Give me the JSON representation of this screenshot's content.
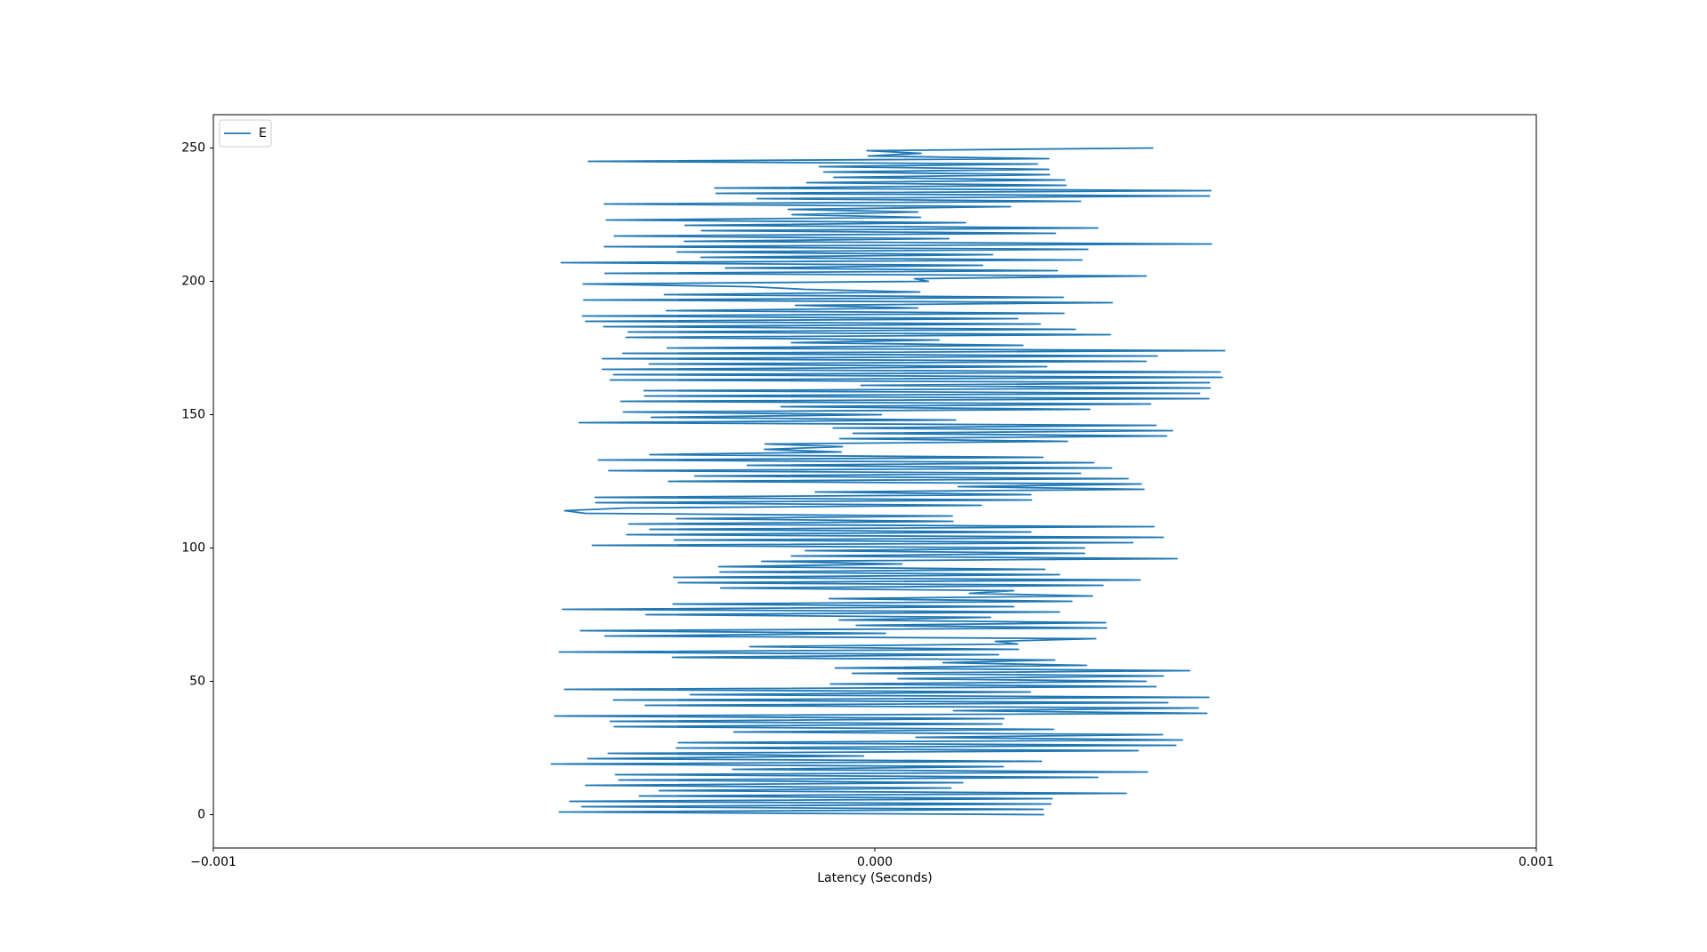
{
  "chart_data": {
    "type": "line",
    "xlabel": "Latency (Seconds)",
    "xlim": [
      -0.001,
      0.001
    ],
    "xticks": [
      {
        "value": -0.001,
        "label": "−0.001"
      },
      {
        "value": 0,
        "label": "0.000"
      },
      {
        "value": 0.001,
        "label": "0.001"
      }
    ],
    "ylim": [
      -12.5,
      262.5
    ],
    "yticks": [
      0,
      50,
      100,
      150,
      200,
      250
    ],
    "grid": false,
    "legend": "upper left",
    "series": [
      {
        "name": "E",
        "color": "#1f77b4",
        "x": [
          0.000256,
          -0.000477,
          0.000254,
          -0.000443,
          0.000266,
          -0.000461,
          0.000268,
          -0.000356,
          0.00038,
          -0.000326,
          0.000115,
          -0.000437,
          0.000133,
          -0.000387,
          0.000337,
          -0.000392,
          0.000412,
          -0.000215,
          0.000194,
          -0.000489,
          0.000252,
          -0.000434,
          -1.7e-05,
          -0.000403,
          0.000398,
          -0.0003,
          0.000455,
          -0.000297,
          0.000465,
          6.2e-05,
          0.000435,
          -0.000213,
          0.00027,
          -0.000394,
          0.000192,
          -0.0004,
          0.000195,
          -0.000484,
          0.000502,
          0.000119,
          0.000489,
          -0.000347,
          0.000443,
          -0.000395,
          0.000505,
          -0.000279,
          0.000235,
          -0.000469,
          0.000425,
          -6.7e-05,
          0.00041,
          3.5e-05,
          0.000436,
          -3.4e-05,
          0.000476,
          -6e-05,
          0.00032,
          0.000103,
          0.000272,
          -0.000306,
          0.000187,
          -0.000477,
          0.000217,
          -0.000189,
          0.000216,
          0.000182,
          0.000334,
          -0.000408,
          1.6e-05,
          -0.000445,
          0.00035,
          -2.8e-05,
          0.000349,
          -5.4e-05,
          0.000175,
          -0.000346,
          0.000279,
          -0.000472,
          0.00021,
          -0.000305,
          0.000298,
          -6.9e-05,
          0.000329,
          0.000143,
          0.00021,
          -0.000233,
          0.000345,
          -0.000297,
          0.000401,
          -0.000304,
          0.000279,
          -0.000234,
          0.000257,
          -0.000236,
          4.1e-05,
          -0.000171,
          0.000457,
          -0.000126,
          0.000317,
          -0.000105,
          0.000317,
          -0.000427,
          0.00039,
          -0.000303,
          0.000436,
          -0.000375,
          0.000236,
          -0.00034,
          0.000422,
          -0.000372,
          0.000118,
          -0.0003,
          0.000117,
          -0.000438,
          -0.000469,
          -0.000375,
          0.000161,
          -0.000422,
          0.000237,
          -0.000423,
          0.000236,
          -9e-05,
          0.000407,
          0.000126,
          0.000403,
          -0.000312,
          0.000383,
          -0.000272,
          0.000311,
          -0.000402,
          0.000358,
          -0.000193,
          0.000331,
          -0.000418,
          0.000254,
          -0.00034,
          -5.1e-05,
          -0.000167,
          -4.9e-05,
          -0.000166,
          0.000291,
          -5.3e-05,
          0.000441,
          -3.3e-05,
          0.00045,
          -6.3e-05,
          0.000425,
          -0.000447,
          0.000122,
          -0.000338,
          1e-05,
          -0.00038,
          0.000325,
          -0.000142,
          0.000417,
          -0.000384,
          0.000505,
          -0.000348,
          0.000491,
          -0.000349,
          0.000507,
          -2.1e-05,
          0.000506,
          -0.0004,
          0.000525,
          -0.000395,
          0.000522,
          -0.000412,
          0.00026,
          -0.000341,
          0.00041,
          -0.000412,
          0.000427,
          -0.000381,
          0.000529,
          -0.000314,
          0.000224,
          -0.000126,
          9.7e-05,
          -0.000376,
          0.000356,
          -0.000373,
          0.000303,
          -0.00041,
          0.00025,
          -0.000437,
          0.000216,
          -0.000442,
          0.000286,
          -0.000315,
          6.5e-05,
          -0.00012,
          0.000359,
          -0.00044,
          0.000285,
          -0.000318,
          6.8e-05,
          -0.000106,
          -0.000188,
          -0.000441,
          8.1e-05,
          6e-05,
          0.00041,
          -0.000408,
          0.000276,
          -0.000226,
          0.000163,
          -0.000474,
          0.000313,
          -0.000263,
          0.000178,
          -0.000299,
          0.000322,
          -0.000409,
          0.000509,
          -0.000288,
          0.000112,
          -0.000394,
          0.000273,
          -0.000262,
          0.000337,
          -0.000287,
          0.000137,
          -0.000406,
          6.9e-05,
          -0.000125,
          6.5e-05,
          -0.000131,
          0.000205,
          -0.000409,
          0.000311,
          -0.000178,
          0.000506,
          -0.00024,
          0.000508,
          -0.000242,
          0.000289,
          -0.000103,
          0.000287,
          -6.2e-05,
          0.000264,
          -7.7e-05,
          0.000263,
          -8.4e-05,
          0.000246,
          -0.000433,
          0.000263,
          -1e-05,
          7e-05,
          -1.2e-05,
          0.000421
        ],
        "values": [
          0,
          1,
          2,
          3,
          4,
          5,
          6,
          7,
          8,
          9,
          10,
          11,
          12,
          13,
          14,
          15,
          16,
          17,
          18,
          19,
          20,
          21,
          22,
          23,
          24,
          25,
          26,
          27,
          28,
          29,
          30,
          31,
          32,
          33,
          34,
          35,
          36,
          37,
          38,
          39,
          40,
          41,
          42,
          43,
          44,
          45,
          46,
          47,
          48,
          49,
          50,
          51,
          52,
          53,
          54,
          55,
          56,
          57,
          58,
          59,
          60,
          61,
          62,
          63,
          64,
          65,
          66,
          67,
          68,
          69,
          70,
          71,
          72,
          73,
          74,
          75,
          76,
          77,
          78,
          79,
          80,
          81,
          82,
          83,
          84,
          85,
          86,
          87,
          88,
          89,
          90,
          91,
          92,
          93,
          94,
          95,
          96,
          97,
          98,
          99,
          100,
          101,
          102,
          103,
          104,
          105,
          106,
          107,
          108,
          109,
          110,
          111,
          112,
          113,
          114,
          115,
          116,
          117,
          118,
          119,
          120,
          121,
          122,
          123,
          124,
          125,
          126,
          127,
          128,
          129,
          130,
          131,
          132,
          133,
          134,
          135,
          136,
          137,
          138,
          139,
          140,
          141,
          142,
          143,
          144,
          145,
          146,
          147,
          148,
          149,
          150,
          151,
          152,
          153,
          154,
          155,
          156,
          157,
          158,
          159,
          160,
          161,
          162,
          163,
          164,
          165,
          166,
          167,
          168,
          169,
          170,
          171,
          172,
          173,
          174,
          175,
          176,
          177,
          178,
          179,
          180,
          181,
          182,
          183,
          184,
          185,
          186,
          187,
          188,
          189,
          190,
          191,
          192,
          193,
          194,
          195,
          196,
          197,
          198,
          199,
          200,
          201,
          202,
          203,
          204,
          205,
          206,
          207,
          208,
          209,
          210,
          211,
          212,
          213,
          214,
          215,
          216,
          217,
          218,
          219,
          220,
          221,
          222,
          223,
          224,
          225,
          226,
          227,
          228,
          229,
          230,
          231,
          232,
          233,
          234,
          235,
          236,
          237,
          238,
          239,
          240,
          241,
          242,
          243,
          244,
          245,
          246,
          247,
          248,
          249,
          250
        ]
      }
    ]
  }
}
